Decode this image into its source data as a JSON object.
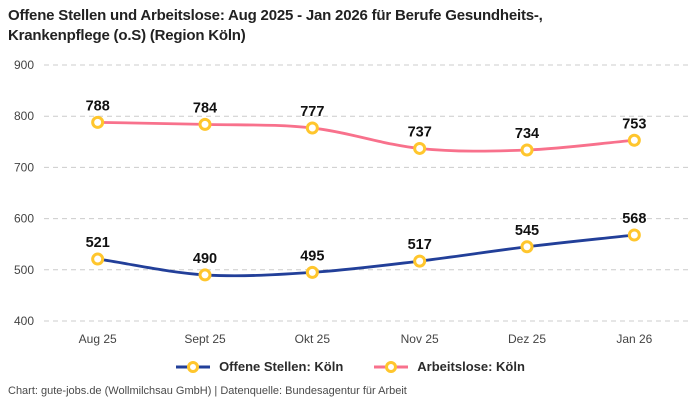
{
  "title": "Offene Stellen und Arbeitslose: Aug 2025 - Jan 2026 für Berufe Gesundheits-, Krankenpflege (o.S) (Region Köln)",
  "footer": "Chart: gute-jobs.de (Wollmilchsau GmbH) | Datenquelle: Bundesagentur für Arbeit",
  "colors": {
    "grid": "#cccccc",
    "axis_text": "#444444",
    "data_label": "#111111",
    "marker_stroke": "#FFC62D",
    "marker_fill": "#ffffff"
  },
  "chart_data": {
    "type": "line",
    "categories": [
      "Aug 25",
      "Sept 25",
      "Okt 25",
      "Nov 25",
      "Dez 25",
      "Jan 26"
    ],
    "series": [
      {
        "name": "Offene Stellen: Köln",
        "color": "#223F99",
        "values": [
          521,
          490,
          495,
          517,
          545,
          568
        ]
      },
      {
        "name": "Arbeitslose: Köln",
        "color": "#F8718C",
        "values": [
          788,
          784,
          777,
          737,
          734,
          753
        ]
      }
    ],
    "ylim": [
      400,
      900
    ],
    "yticks": [
      400,
      500,
      600,
      700,
      800,
      900
    ],
    "grid": "horizontal-dashed",
    "legend_position": "bottom",
    "data_labels": true,
    "marker_shape": "circle"
  }
}
